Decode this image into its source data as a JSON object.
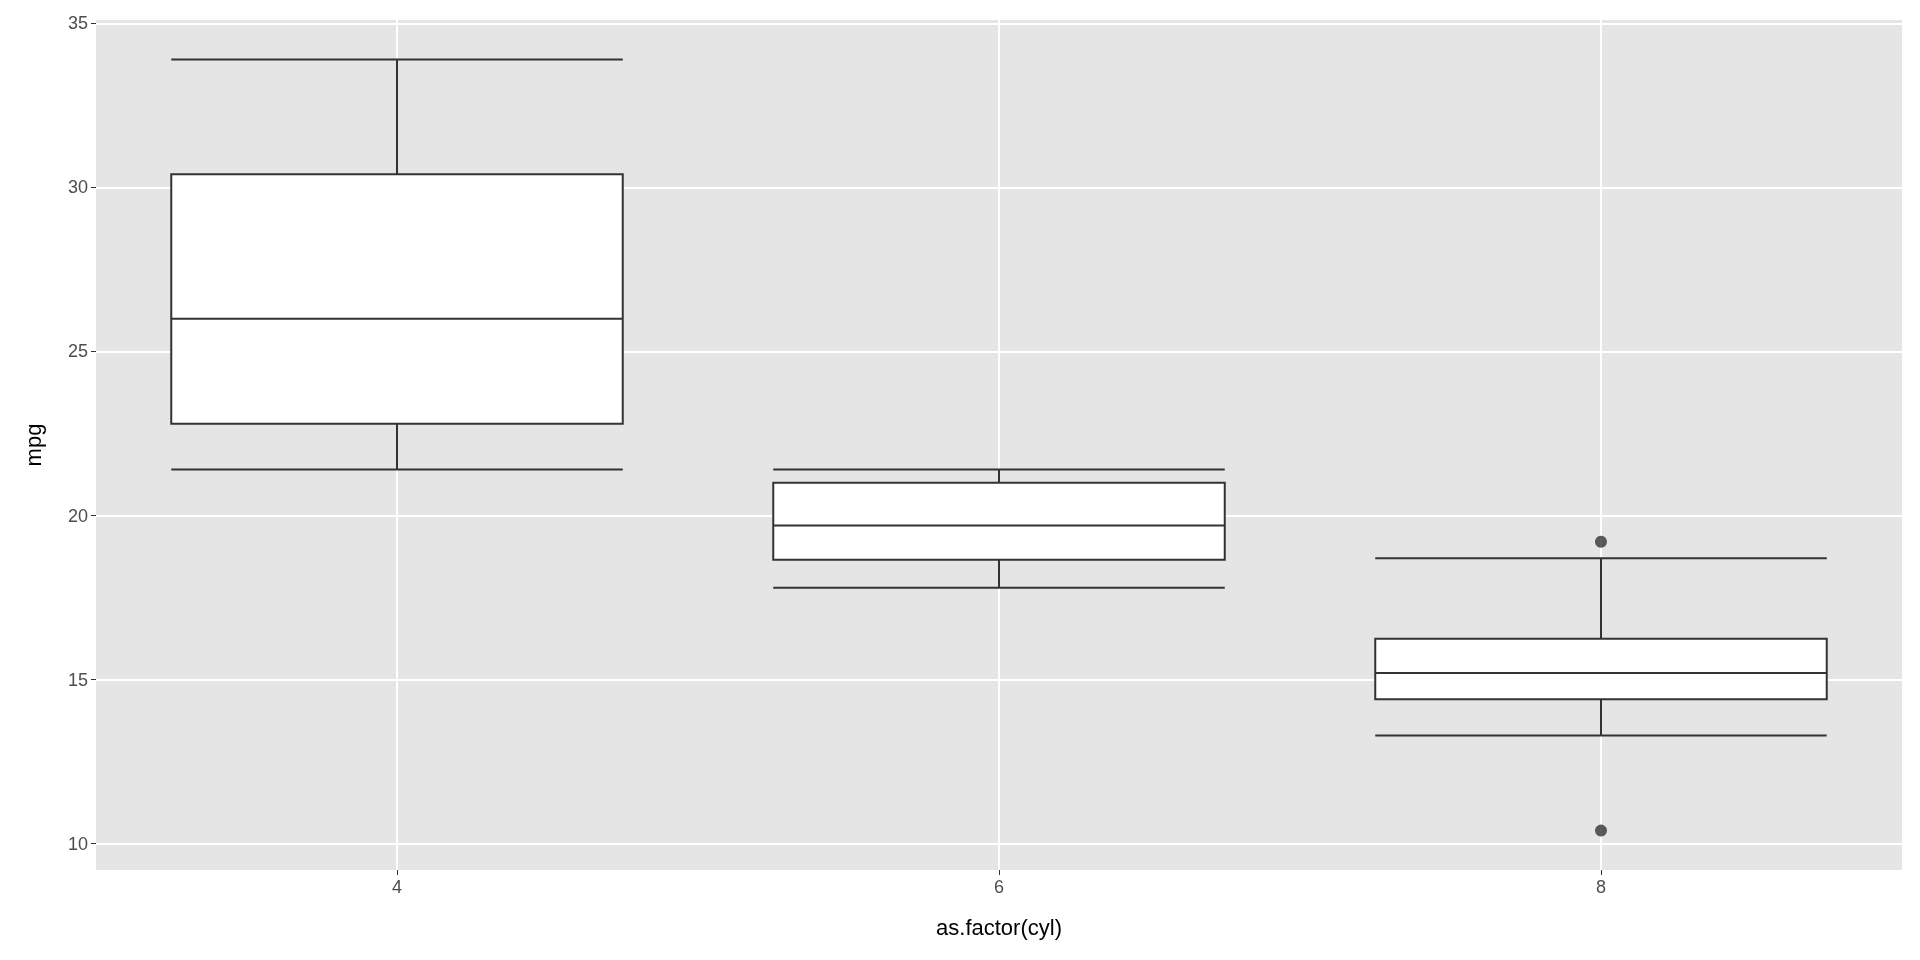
{
  "chart_data": {
    "type": "box",
    "xlabel": "as.factor(cyl)",
    "ylabel": "mpg",
    "categories": [
      "4",
      "6",
      "8"
    ],
    "boxes": [
      {
        "low": 21.4,
        "q1": 22.8,
        "median": 26.0,
        "q3": 30.4,
        "high": 33.9
      },
      {
        "low": 17.8,
        "q1": 18.65,
        "median": 19.7,
        "q3": 21.0,
        "high": 21.4
      },
      {
        "low": 13.3,
        "q1": 14.4,
        "median": 15.2,
        "q3": 16.25,
        "high": 18.7,
        "outliers": [
          10.4,
          19.2
        ]
      }
    ],
    "color": "#333333",
    "ylim": [
      9.2,
      35.1
    ],
    "yticks": [
      10,
      15,
      20,
      25,
      30,
      35
    ],
    "grid": true
  }
}
